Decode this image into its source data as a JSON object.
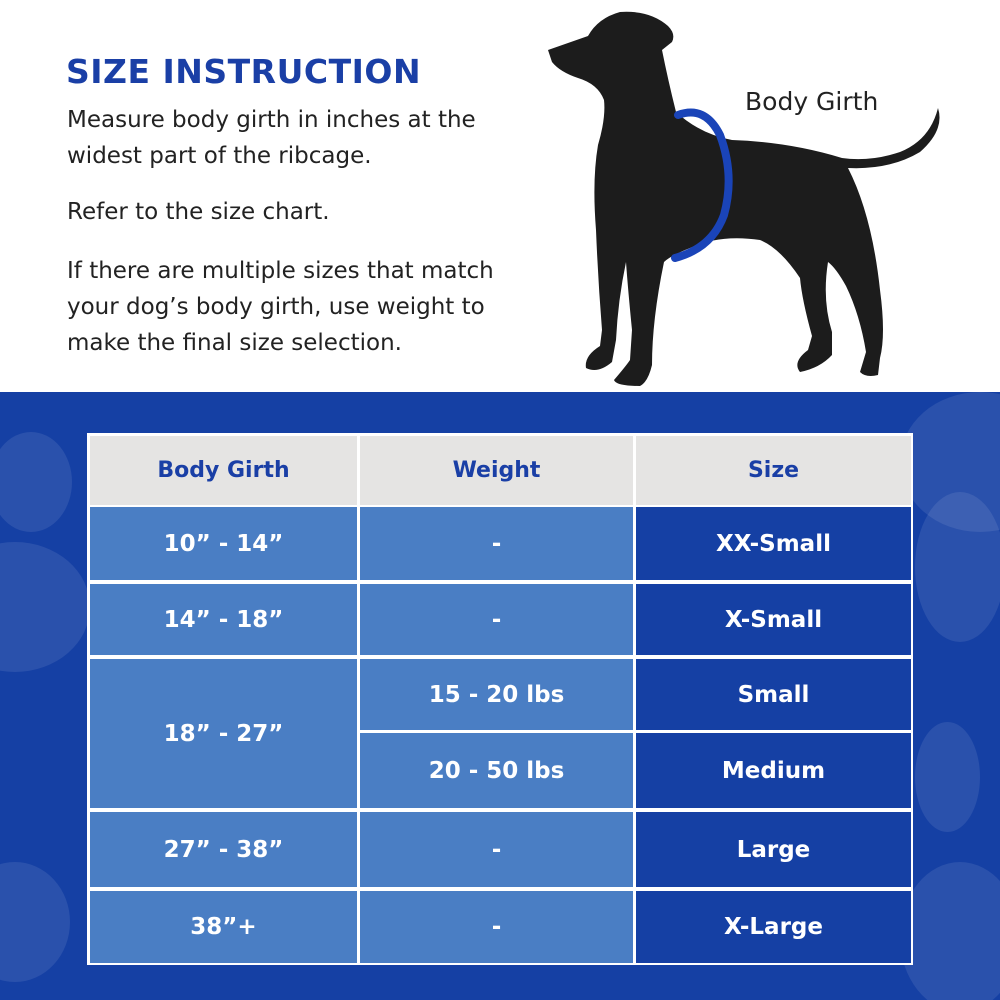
{
  "instructions": {
    "title": "SIZE INSTRUCTION",
    "paragraphs": [
      "Measure body girth in inches at the widest part of the ribcage.",
      "Refer to the size chart.",
      "If there are multiple sizes that match your dog’s body girth, use weight to make the final size selection."
    ],
    "illustration_label": "Body Girth"
  },
  "colors": {
    "brand_blue": "#1540a4",
    "cell_light_blue": "#4a7ec4",
    "header_gray": "#e5e4e3",
    "ring_blue": "#1a44b8"
  },
  "size_chart": {
    "headers": [
      "Body Girth",
      "Weight",
      "Size"
    ],
    "rows": [
      {
        "girth": "10” - 14”",
        "weight": "-",
        "size": "XX-Small"
      },
      {
        "girth": "14” - 18”",
        "weight": "-",
        "size": "X-Small"
      },
      {
        "girth": "18” - 27”",
        "weight": "15 - 20 lbs",
        "size": "Small"
      },
      {
        "girth": "18” - 27”",
        "weight": "20 - 50 lbs",
        "size": "Medium"
      },
      {
        "girth": "27” - 38”",
        "weight": "-",
        "size": "Large"
      },
      {
        "girth": "38”+",
        "weight": "-",
        "size": "X-Large"
      }
    ]
  }
}
